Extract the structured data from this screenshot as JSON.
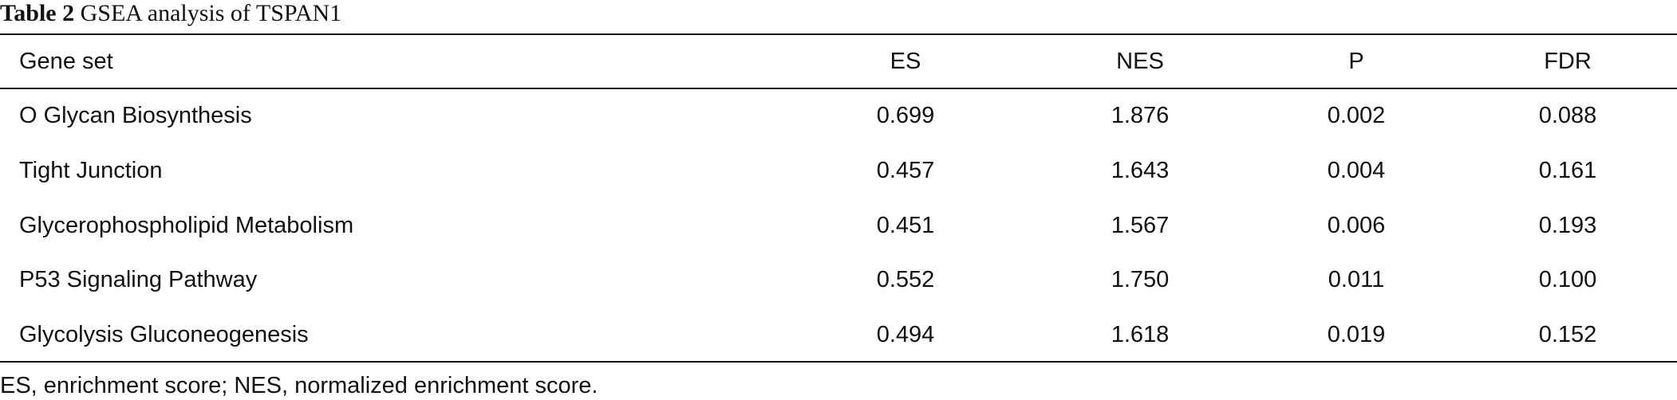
{
  "caption": {
    "label": "Table 2",
    "text": "GSEA analysis of TSPAN1"
  },
  "table": {
    "columns": [
      "Gene set",
      "ES",
      "NES",
      "P",
      "FDR"
    ],
    "rows": [
      [
        "O Glycan Biosynthesis",
        "0.699",
        "1.876",
        "0.002",
        "0.088"
      ],
      [
        "Tight Junction",
        "0.457",
        "1.643",
        "0.004",
        "0.161"
      ],
      [
        "Glycerophospholipid Metabolism",
        "0.451",
        "1.567",
        "0.006",
        "0.193"
      ],
      [
        "P53 Signaling Pathway",
        "0.552",
        "1.750",
        "0.011",
        "0.100"
      ],
      [
        "Glycolysis Gluconeogenesis",
        "0.494",
        "1.618",
        "0.019",
        "0.152"
      ]
    ]
  },
  "footnote": "ES, enrichment score; NES, normalized enrichment score."
}
